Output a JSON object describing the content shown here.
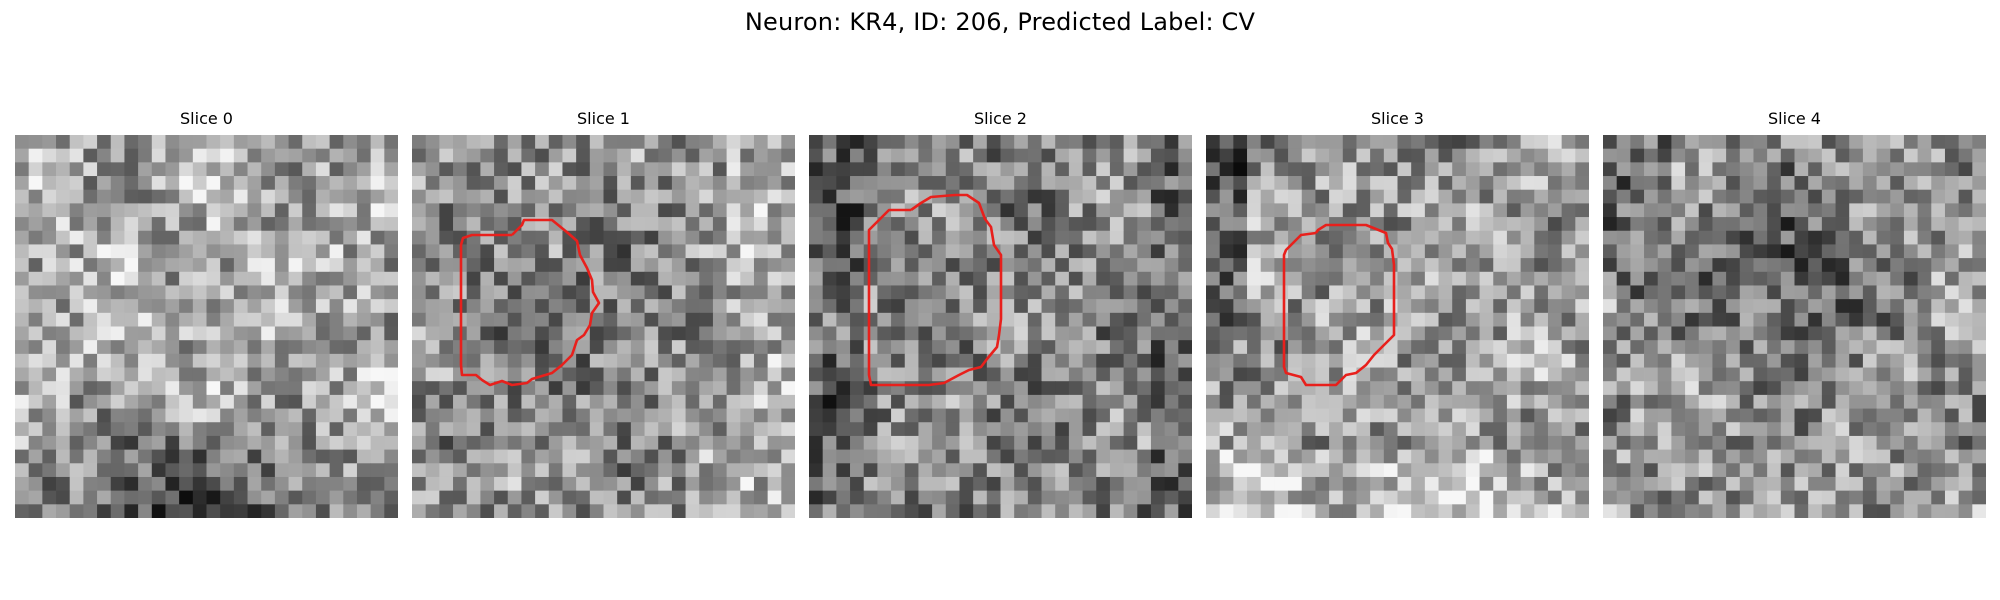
{
  "figure": {
    "title": "Neuron: KR4, ID: 206, Predicted Label: CV"
  },
  "grid": {
    "rows": 28,
    "cols": 28
  },
  "outline_color": "#e8201c",
  "panels": [
    {
      "title": "Slice 0",
      "seed": 11,
      "base": 0.66,
      "dark_lower": true,
      "has_outline": false
    },
    {
      "title": "Slice 1",
      "seed": 23,
      "base": 0.58,
      "dark_lower": false,
      "has_outline": true,
      "outline_shape": "d-shape-small"
    },
    {
      "title": "Slice 2",
      "seed": 37,
      "base": 0.52,
      "dark_lower": false,
      "has_outline": true,
      "outline_shape": "d-shape-tall"
    },
    {
      "title": "Slice 3",
      "seed": 49,
      "base": 0.6,
      "dark_lower": false,
      "has_outline": true,
      "outline_shape": "d-shape-mid"
    },
    {
      "title": "Slice 4",
      "seed": 61,
      "base": 0.58,
      "dark_lower": false,
      "has_outline": false
    }
  ]
}
